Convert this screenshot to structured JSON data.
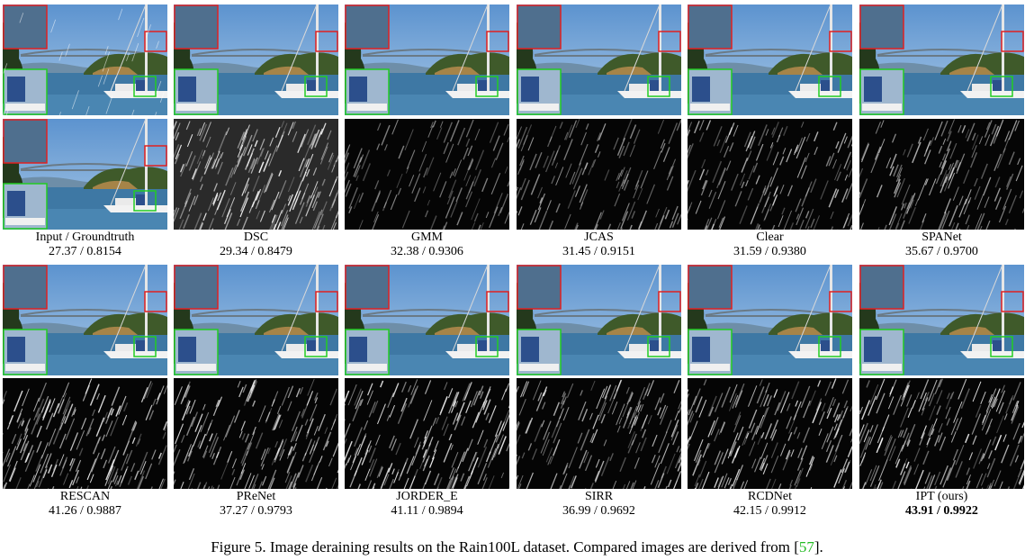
{
  "figure": {
    "label": "Figure 5.",
    "caption_text": "Image deraining results on the Rain100L dataset. Compared images are derived from [",
    "cite": "57",
    "caption_end": "]."
  },
  "colors": {
    "red_box": "#e02020",
    "green_box": "#22cc22",
    "cite": "#22bb22"
  },
  "row1": [
    {
      "id": "input",
      "label": "Input / Groundtruth",
      "value": "27.37 / 0.8154",
      "rain_density": 0,
      "bold": false
    },
    {
      "id": "dsc",
      "label": "DSC",
      "value": "29.34 / 0.8479",
      "rain_density": 0.9,
      "bold": false
    },
    {
      "id": "gmm",
      "label": "GMM",
      "value": "32.38 / 0.9306",
      "rain_density": 0.35,
      "bold": false
    },
    {
      "id": "jcas",
      "label": "JCAS",
      "value": "31.45 / 0.9151",
      "rain_density": 0.45,
      "bold": false
    },
    {
      "id": "clear",
      "label": "Clear",
      "value": "31.59 / 0.9380",
      "rain_density": 0.6,
      "bold": false
    },
    {
      "id": "spanet",
      "label": "SPANet",
      "value": "35.67 / 0.9700",
      "rain_density": 0.55,
      "bold": false
    }
  ],
  "row2": [
    {
      "id": "rescan",
      "label": "RESCAN",
      "value": "41.26 / 0.9887",
      "rain_density": 0.8,
      "bold": false
    },
    {
      "id": "prenet",
      "label": "PReNet",
      "value": "37.27 / 0.9793",
      "rain_density": 0.75,
      "bold": false
    },
    {
      "id": "jorder",
      "label": "JORDER_E",
      "value": "41.11 / 0.9894",
      "rain_density": 0.8,
      "bold": false
    },
    {
      "id": "sirr",
      "label": "SIRR",
      "value": "36.99 / 0.9692",
      "rain_density": 0.7,
      "bold": false
    },
    {
      "id": "rcdnet",
      "label": "RCDNet",
      "value": "42.15 / 0.9912",
      "rain_density": 0.8,
      "bold": false
    },
    {
      "id": "ipt",
      "label": "IPT (ours)",
      "value": "43.91 / 0.9922",
      "rain_density": 0.85,
      "bold": true
    }
  ]
}
